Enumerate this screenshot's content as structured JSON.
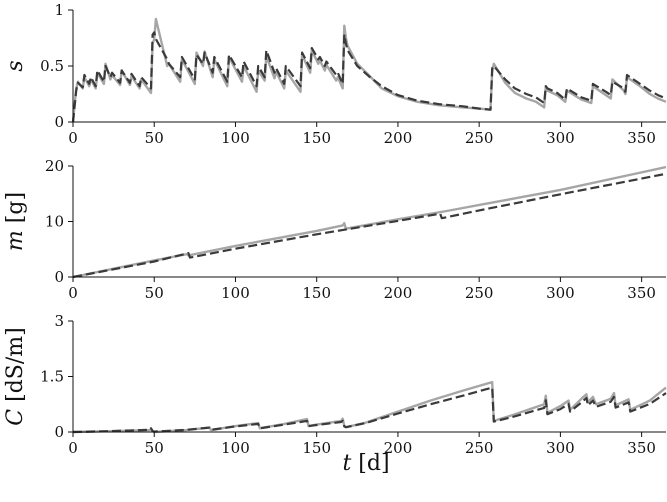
{
  "chart_data": [
    {
      "type": "line",
      "ylabel": "s",
      "xlim": [
        0,
        365
      ],
      "ylim": [
        0,
        1
      ],
      "xticks": [
        0,
        50,
        100,
        150,
        200,
        250,
        300,
        350
      ],
      "yticks": [
        0,
        0.5,
        1
      ],
      "ytick_labels": [
        "0",
        "0.5",
        "1"
      ],
      "grid": false,
      "series": [
        {
          "style": "solid",
          "color": "#a6a6a6",
          "x": [
            0,
            2,
            3,
            6,
            7,
            10,
            11,
            14,
            15,
            19,
            20,
            23,
            24,
            29,
            30,
            35,
            36,
            41,
            42,
            48,
            49,
            50,
            51,
            58,
            59,
            66,
            67,
            75,
            76,
            80,
            81,
            86,
            87,
            95,
            96,
            104,
            105,
            113,
            114,
            118,
            119,
            124,
            125,
            130,
            131,
            140,
            141,
            146,
            147,
            151,
            152,
            155,
            156,
            162,
            163,
            166,
            167,
            168,
            169,
            175,
            182,
            190,
            200,
            212,
            225,
            240,
            250,
            257,
            258,
            259,
            266,
            272,
            279,
            285,
            290,
            291,
            292,
            298,
            303,
            304,
            313,
            319,
            320,
            328,
            331,
            332,
            339,
            340,
            341,
            349,
            355,
            360,
            365
          ],
          "y": [
            0,
            0.3,
            0.36,
            0.3,
            0.4,
            0.32,
            0.38,
            0.3,
            0.44,
            0.34,
            0.52,
            0.38,
            0.42,
            0.33,
            0.46,
            0.33,
            0.41,
            0.3,
            0.38,
            0.26,
            0.7,
            0.74,
            0.92,
            0.5,
            0.52,
            0.36,
            0.56,
            0.34,
            0.62,
            0.5,
            0.63,
            0.4,
            0.56,
            0.32,
            0.58,
            0.36,
            0.5,
            0.27,
            0.46,
            0.37,
            0.59,
            0.39,
            0.45,
            0.3,
            0.46,
            0.27,
            0.6,
            0.44,
            0.64,
            0.52,
            0.55,
            0.46,
            0.51,
            0.37,
            0.4,
            0.3,
            0.86,
            0.75,
            0.68,
            0.52,
            0.42,
            0.3,
            0.23,
            0.18,
            0.15,
            0.13,
            0.12,
            0.11,
            0.45,
            0.52,
            0.35,
            0.26,
            0.21,
            0.18,
            0.13,
            0.32,
            0.28,
            0.24,
            0.18,
            0.28,
            0.2,
            0.17,
            0.32,
            0.24,
            0.21,
            0.38,
            0.28,
            0.25,
            0.4,
            0.32,
            0.25,
            0.21,
            0.18
          ]
        },
        {
          "style": "dashed",
          "color": "#3a3a3a",
          "x": [
            0,
            2,
            3,
            6,
            7,
            10,
            11,
            14,
            15,
            19,
            20,
            23,
            24,
            29,
            30,
            35,
            36,
            41,
            42,
            48,
            49,
            50,
            51,
            58,
            59,
            66,
            67,
            75,
            76,
            80,
            81,
            86,
            87,
            95,
            96,
            104,
            105,
            113,
            114,
            118,
            119,
            124,
            125,
            130,
            131,
            140,
            141,
            146,
            147,
            151,
            152,
            155,
            156,
            162,
            163,
            166,
            167,
            168,
            169,
            175,
            182,
            190,
            200,
            212,
            225,
            240,
            250,
            257,
            258,
            259,
            266,
            272,
            279,
            285,
            290,
            291,
            292,
            298,
            303,
            304,
            313,
            319,
            320,
            328,
            331,
            332,
            339,
            340,
            341,
            349,
            355,
            360,
            365
          ],
          "y": [
            0,
            0.28,
            0.35,
            0.31,
            0.42,
            0.34,
            0.4,
            0.32,
            0.46,
            0.36,
            0.5,
            0.4,
            0.44,
            0.35,
            0.46,
            0.35,
            0.43,
            0.32,
            0.4,
            0.3,
            0.78,
            0.8,
            0.74,
            0.56,
            0.52,
            0.4,
            0.58,
            0.38,
            0.6,
            0.52,
            0.62,
            0.44,
            0.58,
            0.36,
            0.6,
            0.4,
            0.54,
            0.32,
            0.5,
            0.4,
            0.64,
            0.44,
            0.48,
            0.34,
            0.5,
            0.32,
            0.62,
            0.48,
            0.66,
            0.56,
            0.58,
            0.5,
            0.54,
            0.42,
            0.44,
            0.34,
            0.78,
            0.7,
            0.64,
            0.5,
            0.41,
            0.32,
            0.24,
            0.19,
            0.16,
            0.14,
            0.12,
            0.11,
            0.48,
            0.5,
            0.38,
            0.3,
            0.25,
            0.22,
            0.17,
            0.32,
            0.3,
            0.26,
            0.2,
            0.3,
            0.22,
            0.19,
            0.34,
            0.27,
            0.24,
            0.36,
            0.3,
            0.27,
            0.42,
            0.34,
            0.28,
            0.24,
            0.21
          ]
        }
      ]
    },
    {
      "type": "line",
      "ylabel": "m [g]",
      "xlim": [
        0,
        365
      ],
      "ylim": [
        0,
        20
      ],
      "xticks": [
        0,
        50,
        100,
        150,
        200,
        250,
        300,
        350
      ],
      "yticks": [
        0,
        10,
        20
      ],
      "ytick_labels": [
        "0",
        "10",
        "20"
      ],
      "grid": false,
      "series": [
        {
          "style": "solid",
          "color": "#a6a6a6",
          "x": [
            0,
            50,
            70,
            71,
            100,
            150,
            166,
            167,
            168,
            200,
            230,
            258,
            300,
            365
          ],
          "y": [
            0,
            3,
            4.1,
            3.9,
            5.6,
            8.3,
            9.3,
            9.7,
            8.7,
            10.4,
            11.9,
            13.4,
            15.7,
            19.8
          ]
        },
        {
          "style": "dashed",
          "color": "#3a3a3a",
          "x": [
            0,
            50,
            71,
            72,
            100,
            150,
            200,
            226,
            227,
            250,
            300,
            365
          ],
          "y": [
            0,
            2.8,
            4.3,
            3.5,
            5.1,
            7.7,
            10.1,
            11.4,
            10.6,
            12.0,
            14.9,
            18.6
          ]
        }
      ]
    },
    {
      "type": "line",
      "ylabel": "C [dS/m]",
      "xlabel": "t [d]",
      "xlim": [
        0,
        365
      ],
      "ylim": [
        0,
        3
      ],
      "xticks": [
        0,
        50,
        100,
        150,
        200,
        250,
        300,
        350
      ],
      "yticks": [
        0,
        1.5,
        3
      ],
      "ytick_labels": [
        "0",
        "1.5",
        "3"
      ],
      "grid": false,
      "series": [
        {
          "style": "solid",
          "color": "#a6a6a6",
          "x": [
            0,
            20,
            47,
            48,
            49,
            50,
            70,
            84,
            85,
            100,
            114,
            115,
            130,
            144,
            145,
            150,
            165,
            166,
            167,
            168,
            180,
            200,
            220,
            240,
            258,
            259,
            270,
            290,
            291,
            292,
            300,
            305,
            306,
            313,
            316,
            317,
            320,
            322,
            331,
            333,
            334,
            342,
            343,
            355,
            365
          ],
          "y": [
            0,
            0.02,
            0.05,
            0.08,
            0.02,
            0,
            0.05,
            0.12,
            0.05,
            0.16,
            0.24,
            0.1,
            0.22,
            0.35,
            0.16,
            0.2,
            0.3,
            0.36,
            0.16,
            0.13,
            0.25,
            0.55,
            0.85,
            1.12,
            1.35,
            0.3,
            0.45,
            0.75,
            0.98,
            0.52,
            0.7,
            0.85,
            0.6,
            0.9,
            1.02,
            0.8,
            0.95,
            0.75,
            0.9,
            1.05,
            0.72,
            0.88,
            0.6,
            0.85,
            1.2
          ]
        },
        {
          "style": "dashed",
          "color": "#3a3a3a",
          "x": [
            0,
            20,
            47,
            48,
            49,
            50,
            70,
            84,
            85,
            100,
            114,
            115,
            130,
            144,
            145,
            150,
            165,
            166,
            167,
            168,
            180,
            200,
            220,
            240,
            258,
            259,
            270,
            290,
            291,
            292,
            300,
            305,
            306,
            313,
            316,
            317,
            320,
            322,
            331,
            333,
            334,
            342,
            343,
            355,
            365
          ],
          "y": [
            0,
            0.02,
            0.06,
            0.1,
            0.03,
            0.01,
            0.06,
            0.12,
            0.06,
            0.15,
            0.22,
            0.1,
            0.2,
            0.3,
            0.16,
            0.19,
            0.27,
            0.3,
            0.15,
            0.13,
            0.24,
            0.5,
            0.75,
            0.98,
            1.2,
            0.28,
            0.4,
            0.65,
            0.86,
            0.48,
            0.62,
            0.76,
            0.55,
            0.8,
            0.92,
            0.72,
            0.85,
            0.68,
            0.82,
            0.95,
            0.66,
            0.8,
            0.55,
            0.76,
            1.05
          ]
        }
      ]
    }
  ]
}
